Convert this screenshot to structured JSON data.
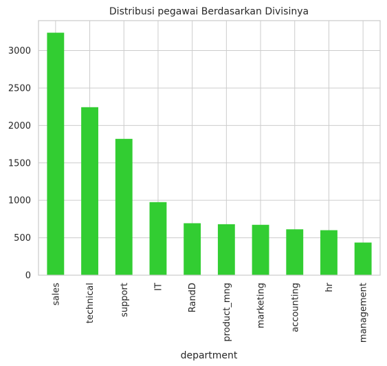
{
  "chart_data": {
    "type": "bar",
    "title": "Distribusi pegawai Berdasarkan Divisinya",
    "xlabel": "department",
    "ylabel": "",
    "categories": [
      "sales",
      "technical",
      "support",
      "IT",
      "RandD",
      "product_mng",
      "marketing",
      "accounting",
      "hr",
      "management"
    ],
    "values": [
      3239,
      2244,
      1821,
      976,
      694,
      681,
      673,
      613,
      601,
      436
    ],
    "ylim": [
      0,
      3400
    ],
    "yticks": [
      0,
      500,
      1000,
      1500,
      2000,
      2500,
      3000
    ],
    "grid": true,
    "bar_color": "#32cd32"
  }
}
